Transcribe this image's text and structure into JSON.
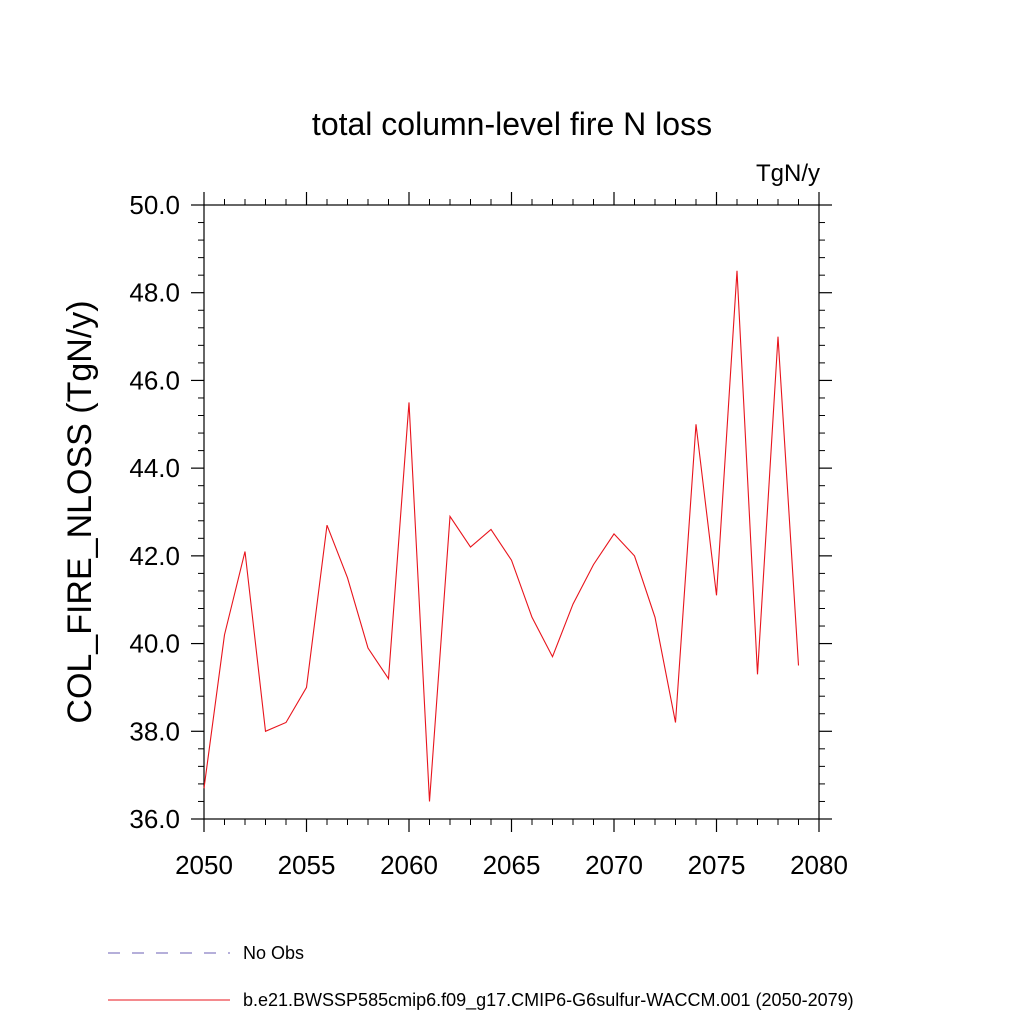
{
  "chart_data": {
    "type": "line",
    "title": "total column-level fire N loss",
    "units_label": "TgN/y",
    "ylabel": "COL_FIRE_NLOSS  (TgN/y)",
    "xlabel": "",
    "xlim": [
      2050,
      2080
    ],
    "ylim": [
      36.0,
      50.0
    ],
    "x_ticks": [
      "2050",
      "2055",
      "2060",
      "2065",
      "2070",
      "2075",
      "2080"
    ],
    "y_ticks": [
      "36.0",
      "38.0",
      "40.0",
      "42.0",
      "44.0",
      "46.0",
      "48.0",
      "50.0"
    ],
    "grid": false,
    "legend_position": "bottom",
    "series": [
      {
        "name": "No Obs",
        "color": "#6b5fb5",
        "style": "dashed",
        "x": [],
        "values": []
      },
      {
        "name": "b.e21.BWSSP585cmip6.f09_g17.CMIP6-G6sulfur-WACCM.001 (2050-2079)",
        "color": "#e8141c",
        "style": "solid",
        "x": [
          2050,
          2051,
          2052,
          2053,
          2054,
          2055,
          2056,
          2057,
          2058,
          2059,
          2060,
          2061,
          2062,
          2063,
          2064,
          2065,
          2066,
          2067,
          2068,
          2069,
          2070,
          2071,
          2072,
          2073,
          2074,
          2075,
          2076,
          2077,
          2078,
          2079
        ],
        "values": [
          36.7,
          40.2,
          42.1,
          38.0,
          38.2,
          39.0,
          42.7,
          41.5,
          39.9,
          39.2,
          45.5,
          36.4,
          42.9,
          42.2,
          42.6,
          41.9,
          40.6,
          39.7,
          40.9,
          41.8,
          42.5,
          42.0,
          40.6,
          38.2,
          45.0,
          41.1,
          48.5,
          39.3,
          47.0,
          39.5
        ]
      }
    ]
  }
}
